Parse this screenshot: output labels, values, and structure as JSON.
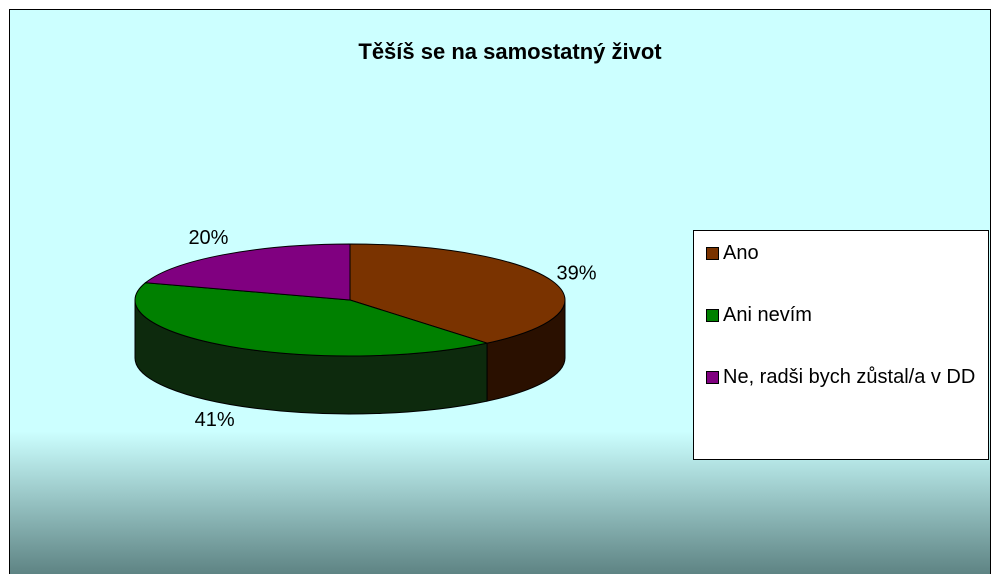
{
  "chart_data": {
    "type": "pie",
    "title": "Těšíš se na samostatný život",
    "categories": [
      "Ano",
      "Ani nevím",
      "Ne, radši bych zůstal/a v DD"
    ],
    "values": [
      39,
      41,
      20
    ],
    "value_labels": [
      "39%",
      "41%",
      "20%"
    ],
    "colors": [
      "#7a3300",
      "#008000",
      "#800080"
    ],
    "side_colors": [
      "#2a1000",
      "#0d2a0d",
      "#2a002a"
    ]
  }
}
